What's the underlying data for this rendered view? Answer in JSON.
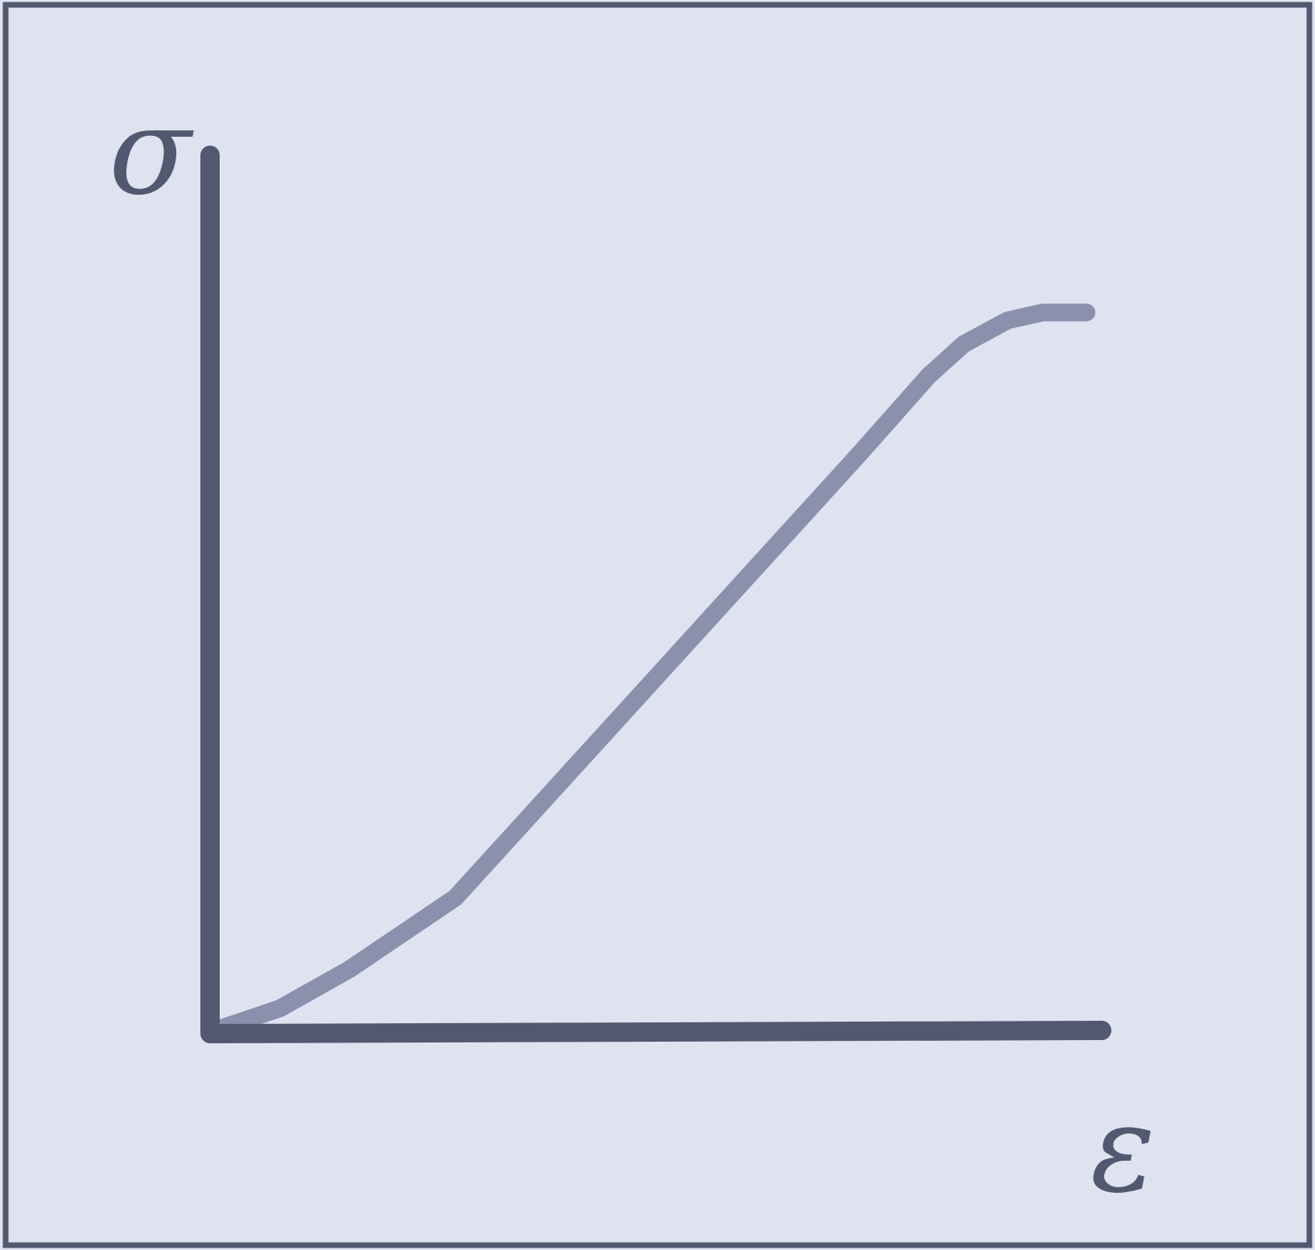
{
  "colors": {
    "background": "#dfe3f0",
    "frame": "#525870",
    "axis": "#525870",
    "curve": "#8b90ad"
  },
  "chart_data": {
    "type": "line",
    "title": "",
    "xlabel": "ε",
    "ylabel": "σ",
    "xlim": [
      0,
      1
    ],
    "ylim": [
      0,
      1
    ],
    "grid": false,
    "legend": "none",
    "x_ticks": [],
    "y_ticks": [],
    "series": [
      {
        "x": [
          0.0,
          0.08,
          0.16,
          0.24,
          0.28,
          0.74,
          0.78,
          0.82,
          0.86,
          0.91,
          0.95,
          1.0
        ],
        "y": [
          0.0,
          0.03,
          0.08,
          0.14,
          0.17,
          0.73,
          0.78,
          0.83,
          0.87,
          0.9,
          0.91,
          0.91
        ]
      }
    ]
  }
}
